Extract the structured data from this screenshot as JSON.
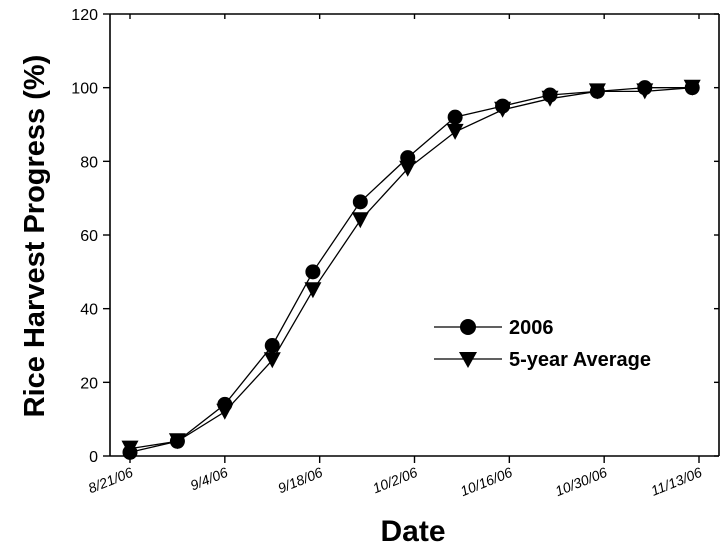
{
  "chart_data": {
    "type": "line",
    "title": "",
    "xlabel": "Date",
    "ylabel": "Rice Harvest Progress (%)",
    "ylim": [
      0,
      120
    ],
    "yticks": [
      0,
      20,
      40,
      60,
      80,
      100,
      120
    ],
    "xlim": [
      "2006-08-21",
      "2006-11-13"
    ],
    "xtick_labels": [
      "8/21/06",
      "9/4/06",
      "9/18/06",
      "10/2/06",
      "10/16/06",
      "10/30/06",
      "11/13/06"
    ],
    "xtick_dates": [
      "2006-08-21",
      "2006-09-04",
      "2006-09-18",
      "2006-10-02",
      "2006-10-16",
      "2006-10-30",
      "2006-11-13"
    ],
    "x": [
      "2006-08-21",
      "2006-08-28",
      "2006-09-04",
      "2006-09-11",
      "2006-09-17",
      "2006-09-24",
      "2006-10-01",
      "2006-10-08",
      "2006-10-15",
      "2006-10-22",
      "2006-10-29",
      "2006-11-05",
      "2006-11-12"
    ],
    "legend_position": "center-right",
    "series": [
      {
        "name": "2006",
        "marker": "circle",
        "values": [
          1,
          4,
          14,
          30,
          50,
          69,
          81,
          92,
          95,
          98,
          99,
          100,
          100
        ]
      },
      {
        "name": "5-year Average",
        "marker": "triangle-down",
        "values": [
          2,
          4,
          12,
          26,
          45,
          64,
          78,
          88,
          94,
          97,
          99,
          99,
          100
        ]
      }
    ]
  }
}
